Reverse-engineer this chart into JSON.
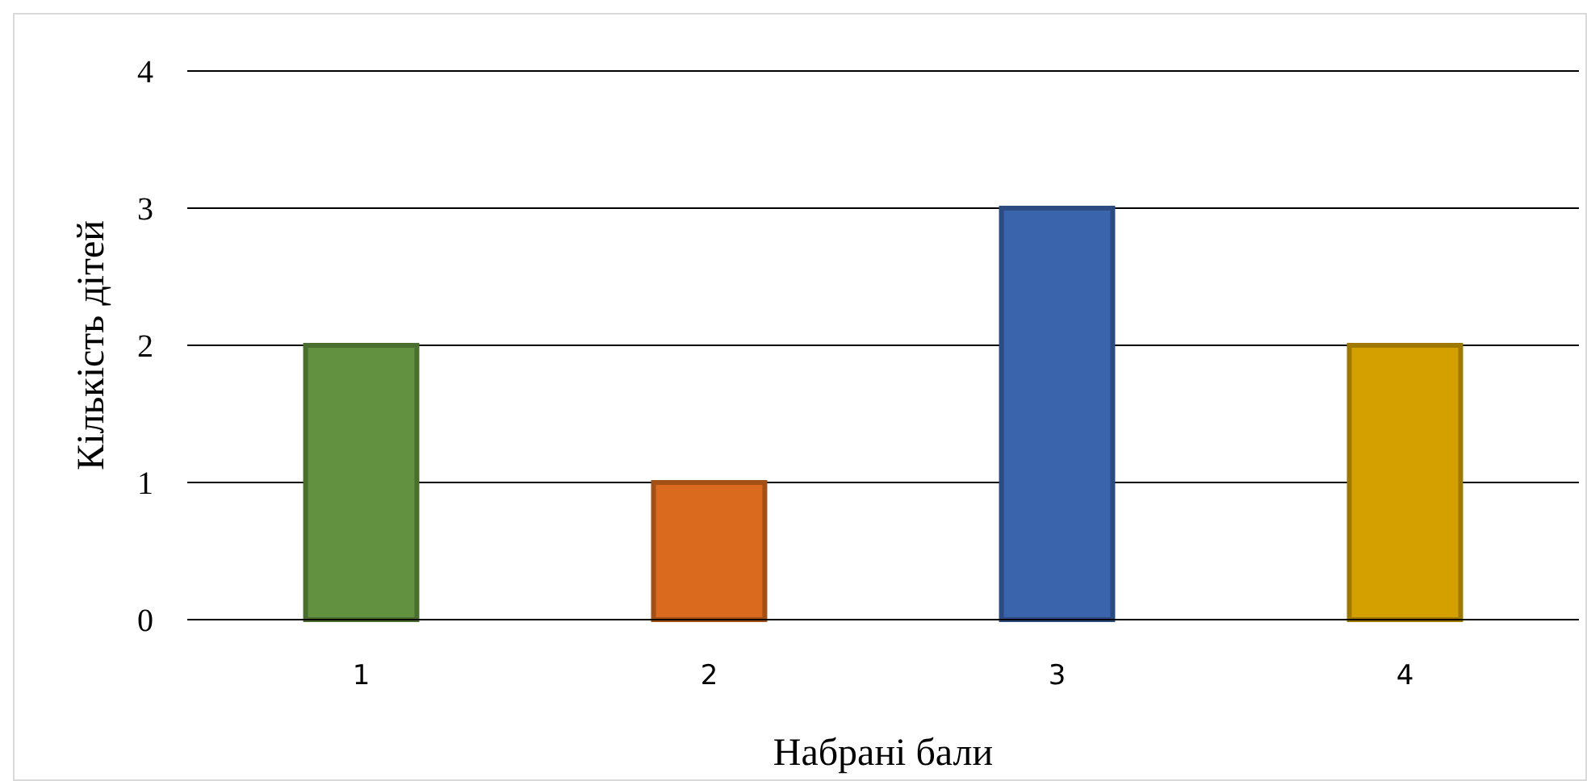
{
  "chart_data": {
    "type": "bar",
    "xlabel": "Набрані бали",
    "ylabel": "Кількість дітей",
    "categories": [
      "1",
      "2",
      "3",
      "4"
    ],
    "values": [
      2,
      1,
      3,
      2
    ],
    "colors": [
      "#629140",
      "#d96a1e",
      "#3a64ac",
      "#d4a000"
    ],
    "ylim": [
      0,
      4
    ],
    "yticks": [
      0,
      1,
      2,
      3,
      4
    ],
    "grid": "y"
  }
}
